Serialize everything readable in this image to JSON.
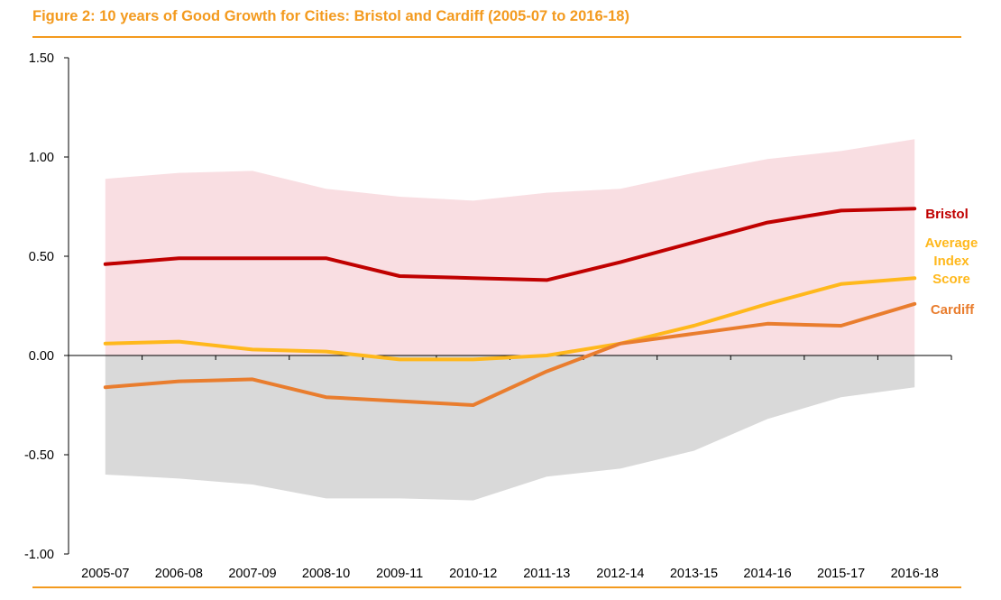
{
  "title": "Figure 2: 10 years of Good Growth for Cities: Bristol and Cardiff (2005-07 to 2016-18)",
  "colors": {
    "accent": "#F39A1E",
    "upper_band": "#F9DEE2",
    "lower_band": "#D9D9D9"
  },
  "chart_data": {
    "type": "line",
    "categories": [
      "2005-07",
      "2006-08",
      "2007-09",
      "2008-10",
      "2009-11",
      "2010-12",
      "2011-13",
      "2012-14",
      "2013-15",
      "2014-16",
      "2015-17",
      "2016-18"
    ],
    "yticks": [
      "1.50",
      "1.00",
      "0.50",
      "0.00",
      "-0.50",
      "-1.00"
    ],
    "ylim": [
      -1.0,
      1.5
    ],
    "grid": false,
    "band_upper": [
      0.89,
      0.92,
      0.93,
      0.84,
      0.8,
      0.78,
      0.82,
      0.84,
      0.92,
      0.99,
      1.03,
      1.09
    ],
    "band_lower": [
      -0.6,
      -0.62,
      -0.65,
      -0.72,
      -0.72,
      -0.73,
      -0.61,
      -0.57,
      -0.48,
      -0.32,
      -0.21,
      -0.16
    ],
    "series": [
      {
        "name": "Bristol",
        "color": "#C00000",
        "values": [
          0.46,
          0.49,
          0.49,
          0.49,
          0.4,
          0.39,
          0.38,
          0.47,
          0.57,
          0.67,
          0.73,
          0.74
        ]
      },
      {
        "name": "Average Index Score",
        "color": "#FFB81C",
        "values": [
          0.06,
          0.07,
          0.03,
          0.02,
          -0.02,
          -0.02,
          0.0,
          0.06,
          0.15,
          0.26,
          0.36,
          0.39
        ]
      },
      {
        "name": "Cardiff",
        "color": "#E97D2E",
        "values": [
          -0.16,
          -0.13,
          -0.12,
          -0.21,
          -0.23,
          -0.25,
          -0.08,
          0.06,
          0.11,
          0.16,
          0.15,
          0.26
        ]
      }
    ],
    "series_labels": [
      {
        "lines": [
          "Bristol"
        ],
        "color": "#C00000"
      },
      {
        "lines": [
          "Average",
          "Index",
          "Score"
        ],
        "color": "#FFB81C"
      },
      {
        "lines": [
          "Cardiff"
        ],
        "color": "#E97D2E"
      }
    ]
  }
}
